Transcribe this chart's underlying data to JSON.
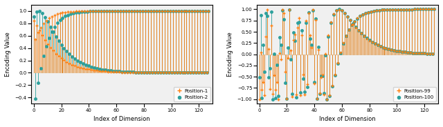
{
  "d_model": 128,
  "orange_color": "#ff7f0e",
  "teal_color": "#2ca09c",
  "fig_width": 6.4,
  "fig_height": 1.84,
  "dpi": 100,
  "ylabel": "Encoding Value",
  "xlabel": "Index of Dimension",
  "legend_left": [
    "Position-1",
    "Position-2"
  ],
  "legend_right": [
    "Position-99",
    "Position-100"
  ],
  "markersize": 2.5,
  "linewidth": 0.6,
  "bg_color": "#f0f0f0",
  "left_ylim": [
    -0.5,
    1.1
  ],
  "right_ylim": [
    -1.1,
    1.1
  ]
}
